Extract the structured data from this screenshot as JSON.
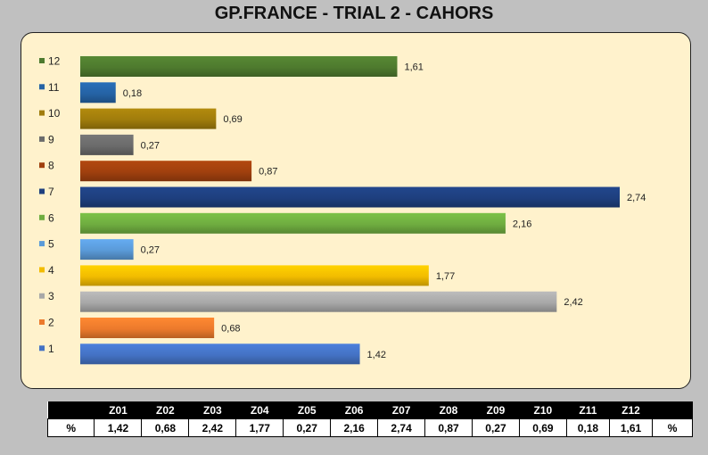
{
  "title": "GP.FRANCE - TRIAL 2  - CAHORS",
  "chart_data": {
    "type": "bar",
    "orientation": "horizontal",
    "categories": [
      "12",
      "11",
      "10",
      "9",
      "8",
      "7",
      "6",
      "5",
      "4",
      "3",
      "2",
      "1"
    ],
    "values": [
      1.61,
      0.18,
      0.69,
      0.27,
      0.87,
      2.74,
      2.16,
      0.27,
      1.77,
      2.42,
      0.68,
      1.42
    ],
    "value_labels": [
      "1,61",
      "0,18",
      "0,69",
      "0,27",
      "0,87",
      "2,74",
      "2,16",
      "0,27",
      "1,77",
      "2,42",
      "0,68",
      "1,42"
    ],
    "colors": [
      "#4e7a2e",
      "#2563a5",
      "#a07c0c",
      "#6b6b6b",
      "#a0400e",
      "#1e3f7e",
      "#6fad40",
      "#5a9ad8",
      "#f2bc00",
      "#a8a8a8",
      "#ec7a2c",
      "#4472c4"
    ],
    "legend": [
      "12",
      "11",
      "10",
      "9",
      "8",
      "7",
      "6",
      "5",
      "4",
      "3",
      "2",
      "1"
    ],
    "legend_position": "left",
    "xlim": [
      0,
      2.74
    ],
    "grid": false
  },
  "table": {
    "headers": [
      "",
      "Z01",
      "Z02",
      "Z03",
      "Z04",
      "Z05",
      "Z06",
      "Z07",
      "Z08",
      "Z09",
      "Z10",
      "Z11",
      "Z12",
      ""
    ],
    "values": [
      "%",
      "1,42",
      "0,68",
      "2,42",
      "1,77",
      "0,27",
      "2,16",
      "2,74",
      "0,87",
      "0,27",
      "0,69",
      "0,18",
      "1,61",
      "%"
    ]
  }
}
